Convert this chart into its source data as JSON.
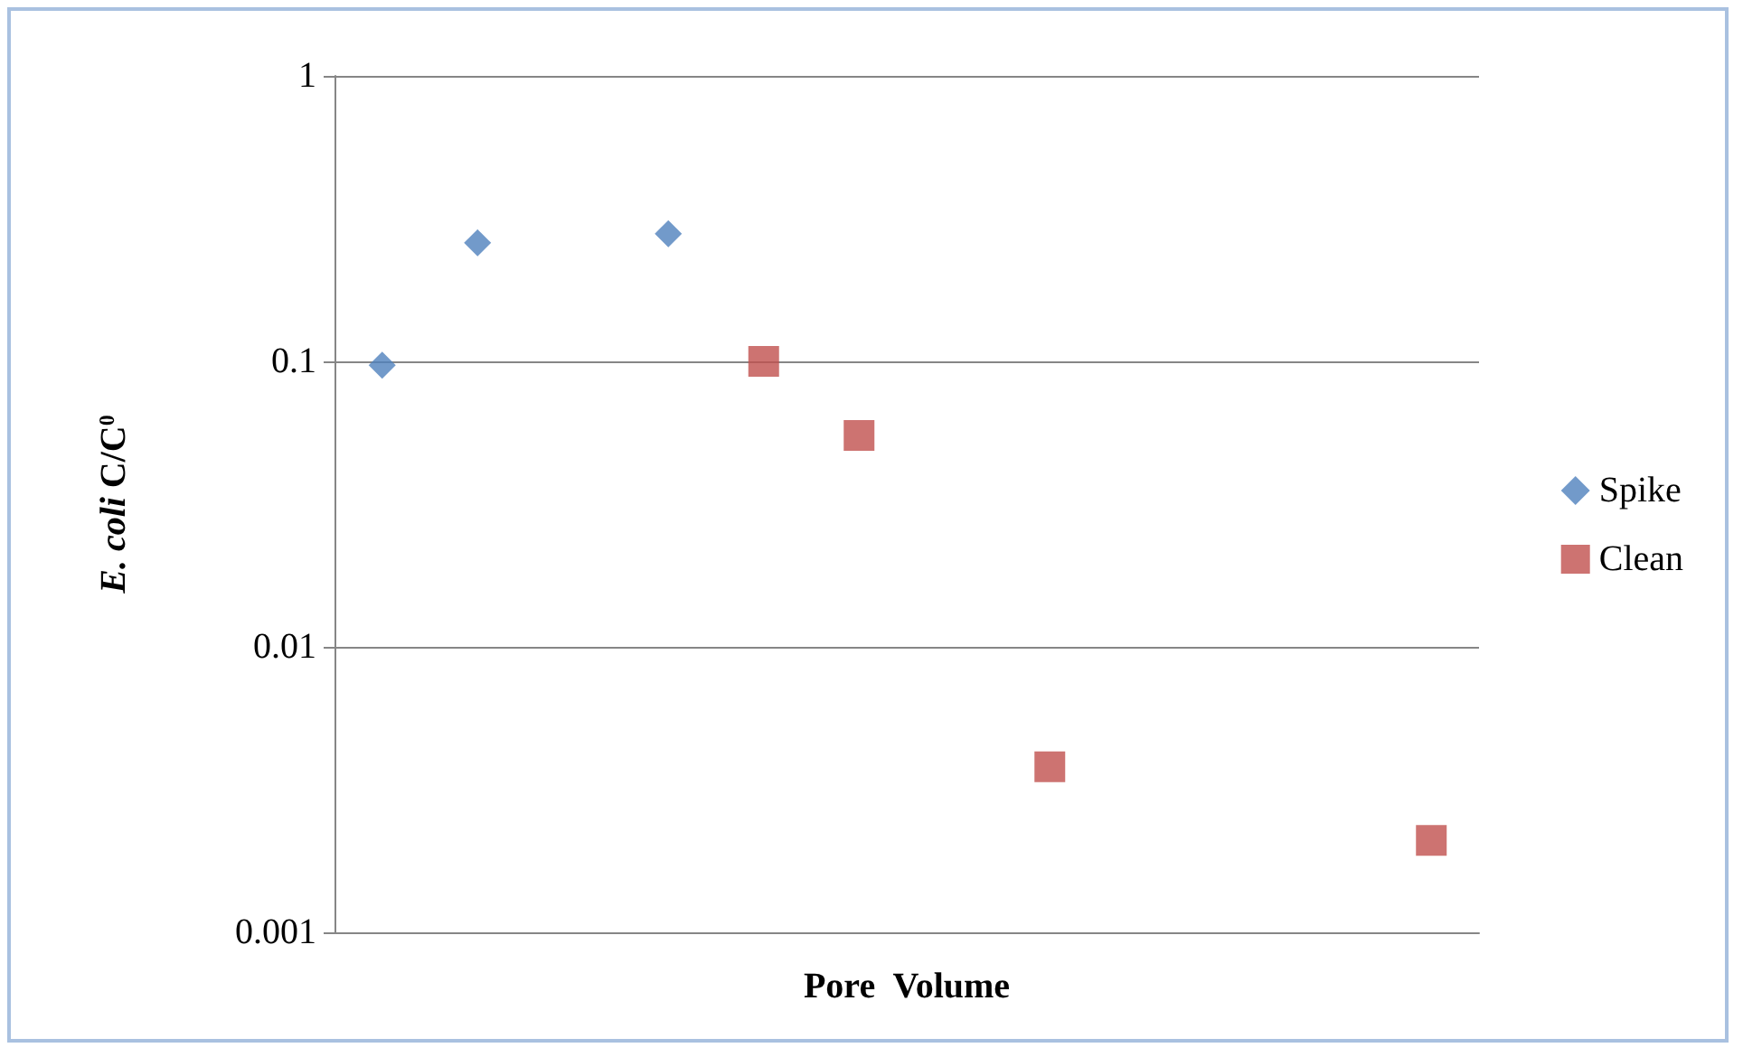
{
  "chart_data": {
    "type": "scatter",
    "xlabel": "Pore  Volume",
    "ylabel": "E. coli C/C$^{0}$",
    "categories": [
      null,
      null,
      null,
      null,
      null,
      null,
      null,
      null,
      null,
      null,
      null,
      null
    ],
    "series": [
      {
        "name": "Spike",
        "color": "#4f81bd",
        "marker": "diamond",
        "values": [
          0.097,
          0.26,
          null,
          0.28,
          null,
          null,
          null,
          null,
          null,
          null,
          null,
          null
        ]
      },
      {
        "name": "Clean",
        "color": "#c0504d",
        "marker": "square",
        "values": [
          null,
          null,
          null,
          null,
          0.1,
          0.055,
          null,
          0.0038,
          null,
          null,
          null,
          0.0021
        ]
      }
    ],
    "log": "y",
    "ylim": [
      0.001,
      1
    ],
    "yticks": [
      0.001,
      0.01,
      0.1,
      1
    ],
    "grid": "y",
    "legend": "right"
  }
}
